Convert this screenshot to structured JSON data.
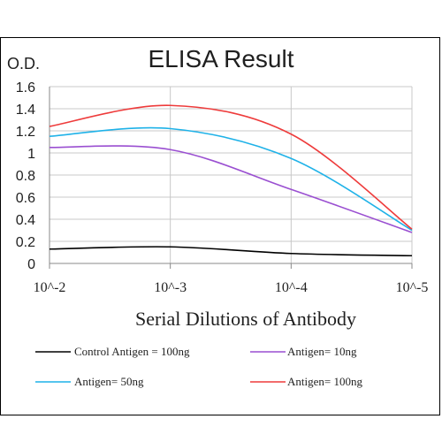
{
  "chart_data": {
    "type": "line",
    "title": "ELISA Result",
    "ylabel": "O.D.",
    "xlabel": "Serial Dilutions  of Antibody",
    "x": [
      "10^-2",
      "10^-3",
      "10^-4",
      "10^-5"
    ],
    "yticks": [
      "0",
      "0.2",
      "0.4",
      "0.6",
      "0.8",
      "1",
      "1.2",
      "1.4",
      "1.6"
    ],
    "ylim": [
      0,
      1.6
    ],
    "grid": true,
    "series": [
      {
        "name": "Control Antigen = 100ng",
        "color": "#000000",
        "values": [
          0.13,
          0.15,
          0.09,
          0.07
        ]
      },
      {
        "name": "Antigen= 10ng",
        "color": "#9a4fd1",
        "values": [
          1.05,
          1.03,
          0.67,
          0.28
        ]
      },
      {
        "name": "Antigen= 50ng",
        "color": "#1fb2e8",
        "values": [
          1.15,
          1.22,
          0.95,
          0.3
        ]
      },
      {
        "name": "Antigen= 100ng",
        "color": "#ee3b3b",
        "values": [
          1.24,
          1.43,
          1.17,
          0.31
        ]
      }
    ]
  }
}
